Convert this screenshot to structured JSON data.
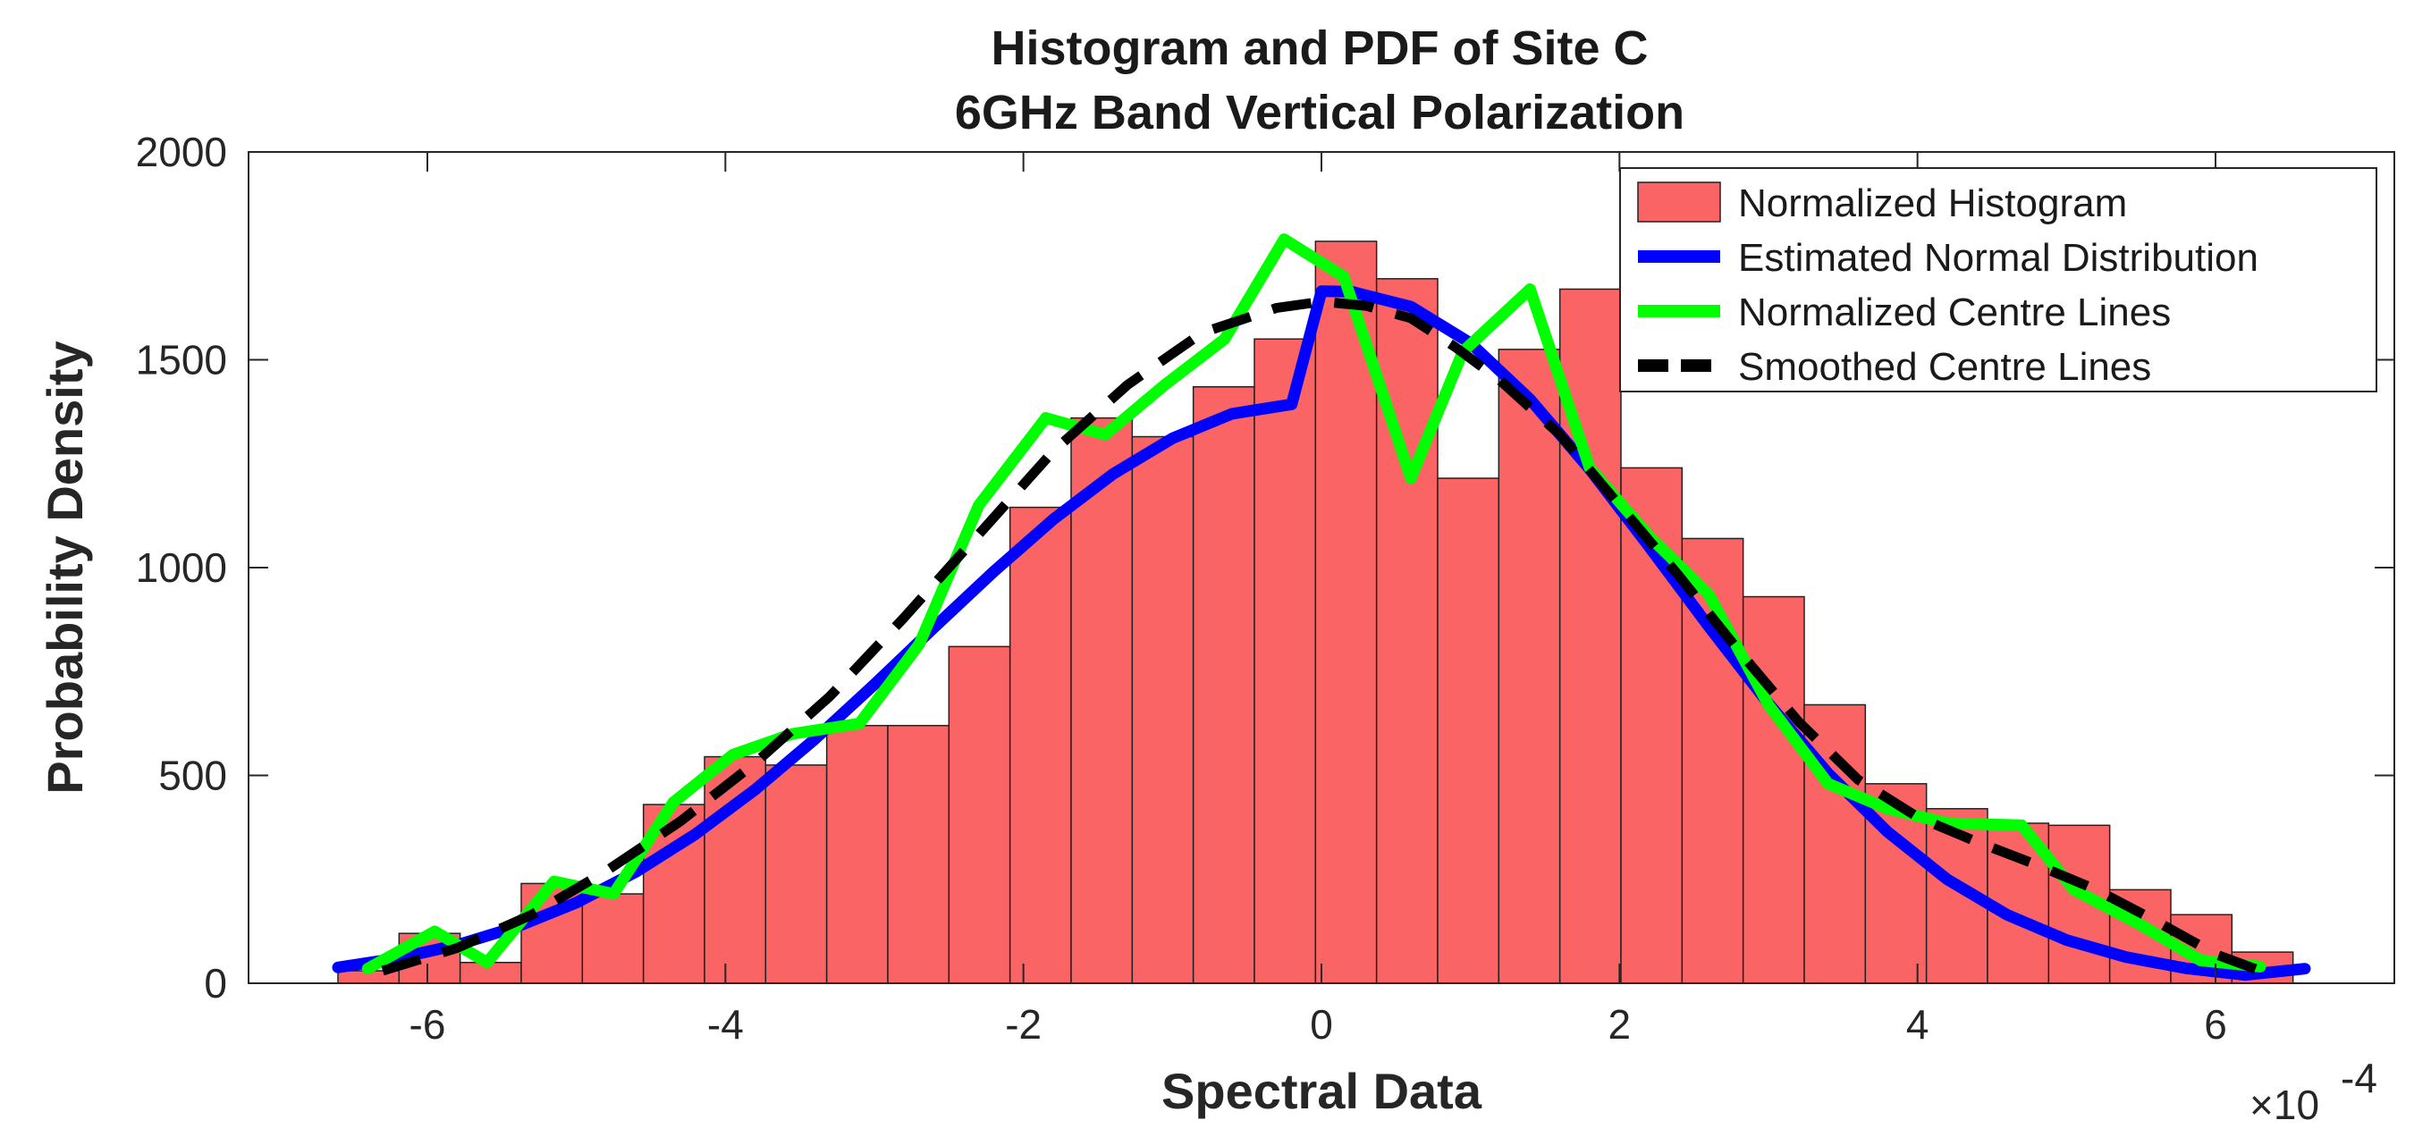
{
  "chart_data": {
    "type": "bar",
    "title": "Histogram and PDF of Site C",
    "subtitle": "6GHz Band Vertical Polarization",
    "xlabel": "Spectral Data",
    "ylabel": "Probability Density",
    "x_exponent_base": "×10",
    "x_exponent_power": "-4",
    "xlim": [
      -7.2,
      7.2
    ],
    "ylim": [
      0,
      2000
    ],
    "xticks": [
      -6,
      -4,
      -2,
      0,
      2,
      4,
      6
    ],
    "xtick_labels": [
      "-6",
      "-4",
      "-2",
      "0",
      "2",
      "4",
      "6"
    ],
    "yticks": [
      0,
      500,
      1000,
      1500,
      2000
    ],
    "ytick_labels": [
      "0",
      "500",
      "1000",
      "1500",
      "2000"
    ],
    "legend_position": "top-right",
    "histogram": {
      "name": "Normalized Histogram",
      "color": "#fa6464",
      "bin_edges": [
        -6.6,
        -6.19,
        -5.78,
        -5.37,
        -4.96,
        -4.55,
        -4.14,
        -3.73,
        -3.32,
        -2.91,
        -2.5,
        -2.09,
        -1.68,
        -1.27,
        -0.86,
        -0.45,
        -0.04,
        0.37,
        0.78,
        1.19,
        1.6,
        2.01,
        2.42,
        2.83,
        3.24,
        3.65,
        4.06,
        4.47,
        4.88,
        5.29,
        5.7,
        6.11,
        6.52
      ],
      "values": [
        30,
        120,
        50,
        240,
        215,
        430,
        545,
        525,
        620,
        620,
        810,
        1145,
        1360,
        1315,
        1435,
        1550,
        1785,
        1695,
        1215,
        1525,
        1670,
        1240,
        1070,
        930,
        670,
        480,
        420,
        385,
        380,
        225,
        165,
        75
      ]
    },
    "series": [
      {
        "name": "Estimated Normal Distribution",
        "color": "#0000ff",
        "style": "solid",
        "x": [
          -6.6,
          -6.2,
          -5.8,
          -5.4,
          -5.0,
          -4.6,
          -4.2,
          -3.8,
          -3.4,
          -3.0,
          -2.6,
          -2.2,
          -1.8,
          -1.4,
          -1.0,
          -0.6,
          -0.2,
          0.0,
          0.2,
          0.6,
          1.0,
          1.4,
          1.8,
          2.2,
          2.6,
          3.0,
          3.4,
          3.8,
          4.2,
          4.6,
          5.0,
          5.4,
          5.8,
          6.2,
          6.6
        ],
        "values": [
          38,
          60,
          92,
          136,
          194,
          268,
          359,
          466,
          587,
          719,
          856,
          990,
          1116,
          1225,
          1311,
          1370,
          1393,
          1665,
          1664,
          1628,
          1540,
          1405,
          1237,
          1050,
          858,
          673,
          505,
          364,
          250,
          165,
          104,
          63,
          36,
          20,
          35
        ]
      },
      {
        "name": "Normalized Centre Lines",
        "color": "#00ff00",
        "style": "solid",
        "x": [
          -6.4,
          -5.95,
          -5.6,
          -5.15,
          -4.75,
          -4.35,
          -3.95,
          -3.55,
          -3.1,
          -2.7,
          -2.3,
          -1.85,
          -1.45,
          -1.05,
          -0.65,
          -0.25,
          0.15,
          0.6,
          0.95,
          1.4,
          1.8,
          2.2,
          2.6,
          3.0,
          3.4,
          3.8,
          4.2,
          4.7,
          5.05,
          5.5,
          5.9,
          6.3
        ],
        "values": [
          35,
          125,
          50,
          245,
          215,
          435,
          550,
          600,
          625,
          815,
          1150,
          1360,
          1320,
          1440,
          1550,
          1790,
          1700,
          1215,
          1520,
          1670,
          1240,
          1075,
          935,
          670,
          480,
          420,
          385,
          380,
          225,
          140,
          55,
          40
        ]
      },
      {
        "name": "Smoothed Centre Lines",
        "color": "#000000",
        "style": "dashed",
        "x": [
          -6.3,
          -5.8,
          -5.3,
          -4.8,
          -4.3,
          -3.8,
          -3.3,
          -2.8,
          -2.3,
          -1.8,
          -1.3,
          -0.8,
          -0.3,
          0.0,
          0.3,
          0.6,
          0.9,
          1.2,
          1.6,
          2.0,
          2.4,
          2.8,
          3.2,
          3.6,
          4.0,
          4.4,
          4.8,
          5.2,
          5.6,
          6.0,
          6.3
        ],
        "values": [
          30,
          85,
          165,
          270,
          390,
          530,
          690,
          880,
          1080,
          1280,
          1440,
          1565,
          1625,
          1640,
          1630,
          1600,
          1530,
          1450,
          1320,
          1150,
          980,
          800,
          630,
          490,
          400,
          340,
          285,
          225,
          150,
          70,
          30
        ]
      }
    ]
  }
}
